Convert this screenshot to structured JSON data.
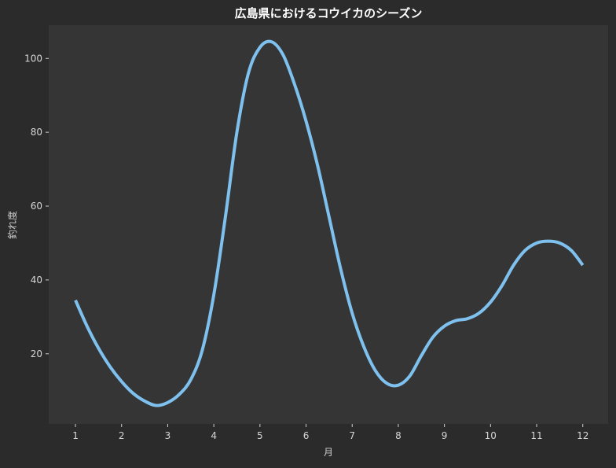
{
  "chart_data": {
    "type": "line",
    "title": "広島県におけるコウイカのシーズン",
    "xlabel": "月",
    "ylabel": "釣れ度",
    "x": [
      1,
      2,
      3,
      4,
      5,
      6,
      7,
      8,
      9,
      10,
      11,
      12
    ],
    "xticks": [
      "1",
      "2",
      "3",
      "4",
      "5",
      "6",
      "7",
      "8",
      "9",
      "10",
      "11",
      "12"
    ],
    "yticks": [
      "20",
      "40",
      "60",
      "80",
      "100"
    ],
    "xlim": [
      0.42,
      12.55
    ],
    "ylim": [
      1,
      109
    ],
    "grid": false,
    "series": [
      {
        "name": "",
        "color": "#7fc1ee",
        "points": [
          [
            1.0,
            34.5
          ],
          [
            1.25,
            27.5
          ],
          [
            1.5,
            21.5
          ],
          [
            1.75,
            16.5
          ],
          [
            2.0,
            12.5
          ],
          [
            2.25,
            9.3
          ],
          [
            2.5,
            7.2
          ],
          [
            2.75,
            6.0
          ],
          [
            3.0,
            6.8
          ],
          [
            3.25,
            9.0
          ],
          [
            3.5,
            13.0
          ],
          [
            3.75,
            21.0
          ],
          [
            4.0,
            36.0
          ],
          [
            4.25,
            57.0
          ],
          [
            4.5,
            80.0
          ],
          [
            4.75,
            96.0
          ],
          [
            5.0,
            103.0
          ],
          [
            5.25,
            104.5
          ],
          [
            5.5,
            101.0
          ],
          [
            5.75,
            93.0
          ],
          [
            6.0,
            83.0
          ],
          [
            6.25,
            71.0
          ],
          [
            6.5,
            57.0
          ],
          [
            6.75,
            43.0
          ],
          [
            7.0,
            31.0
          ],
          [
            7.25,
            22.0
          ],
          [
            7.5,
            15.5
          ],
          [
            7.75,
            12.0
          ],
          [
            8.0,
            11.5
          ],
          [
            8.25,
            14.0
          ],
          [
            8.5,
            19.5
          ],
          [
            8.75,
            24.5
          ],
          [
            9.0,
            27.5
          ],
          [
            9.25,
            29.0
          ],
          [
            9.5,
            29.5
          ],
          [
            9.75,
            31.0
          ],
          [
            10.0,
            34.0
          ],
          [
            10.25,
            38.5
          ],
          [
            10.5,
            44.0
          ],
          [
            10.75,
            48.0
          ],
          [
            11.0,
            50.0
          ],
          [
            11.25,
            50.5
          ],
          [
            11.5,
            50.0
          ],
          [
            11.75,
            48.0
          ],
          [
            12.0,
            44.0
          ]
        ]
      }
    ]
  }
}
